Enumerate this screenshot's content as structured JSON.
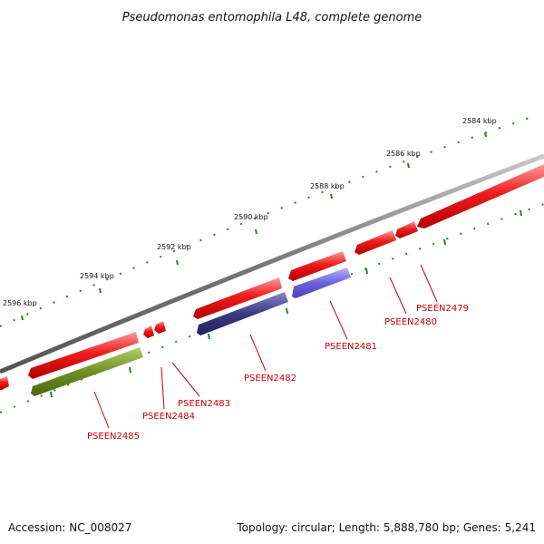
{
  "title": "Pseudomonas entomophila L48, complete genome",
  "footer": {
    "accession": "Accession: NC_008027",
    "summary": "Topology: circular; Length: 5,888,780 bp; Genes: 5,241"
  },
  "colors": {
    "backbone": "#888888",
    "forward_gene": "#ee1c1c",
    "reverse_gene_blue": "#5b53c7",
    "reverse_gene_dark": "#3c3882",
    "reverse_gene_green": "#6f8f22",
    "tick": "#1a8a1a",
    "label": "#cc0000"
  },
  "scale": {
    "unit": "kbp",
    "labels": [
      "2584 kbp",
      "2586 kbp",
      "2588 kbp",
      "2590 kbp",
      "2592 kbp",
      "2594 kbp",
      "2596 kbp"
    ]
  },
  "genes": [
    {
      "id": "PSEEN2479",
      "label": "PSEEN2479",
      "strand": "+",
      "color": "forward_gene"
    },
    {
      "id": "PSEEN2480",
      "label": "PSEEN2480",
      "strand": "+",
      "color": "forward_gene"
    },
    {
      "id": "PSEEN2481",
      "label": "PSEEN2481",
      "strand": "-",
      "color": "reverse_gene_blue"
    },
    {
      "id": "PSEEN2482",
      "label": "PSEEN2482",
      "strand": "-",
      "color": "reverse_gene_dark"
    },
    {
      "id": "PSEEN2483",
      "label": "PSEEN2483",
      "strand": "+",
      "color": "forward_gene"
    },
    {
      "id": "PSEEN2484",
      "label": "PSEEN2484",
      "strand": "+",
      "color": "forward_gene"
    },
    {
      "id": "PSEEN2485",
      "label": "PSEEN2485",
      "strand": "-",
      "color": "reverse_gene_green"
    }
  ]
}
